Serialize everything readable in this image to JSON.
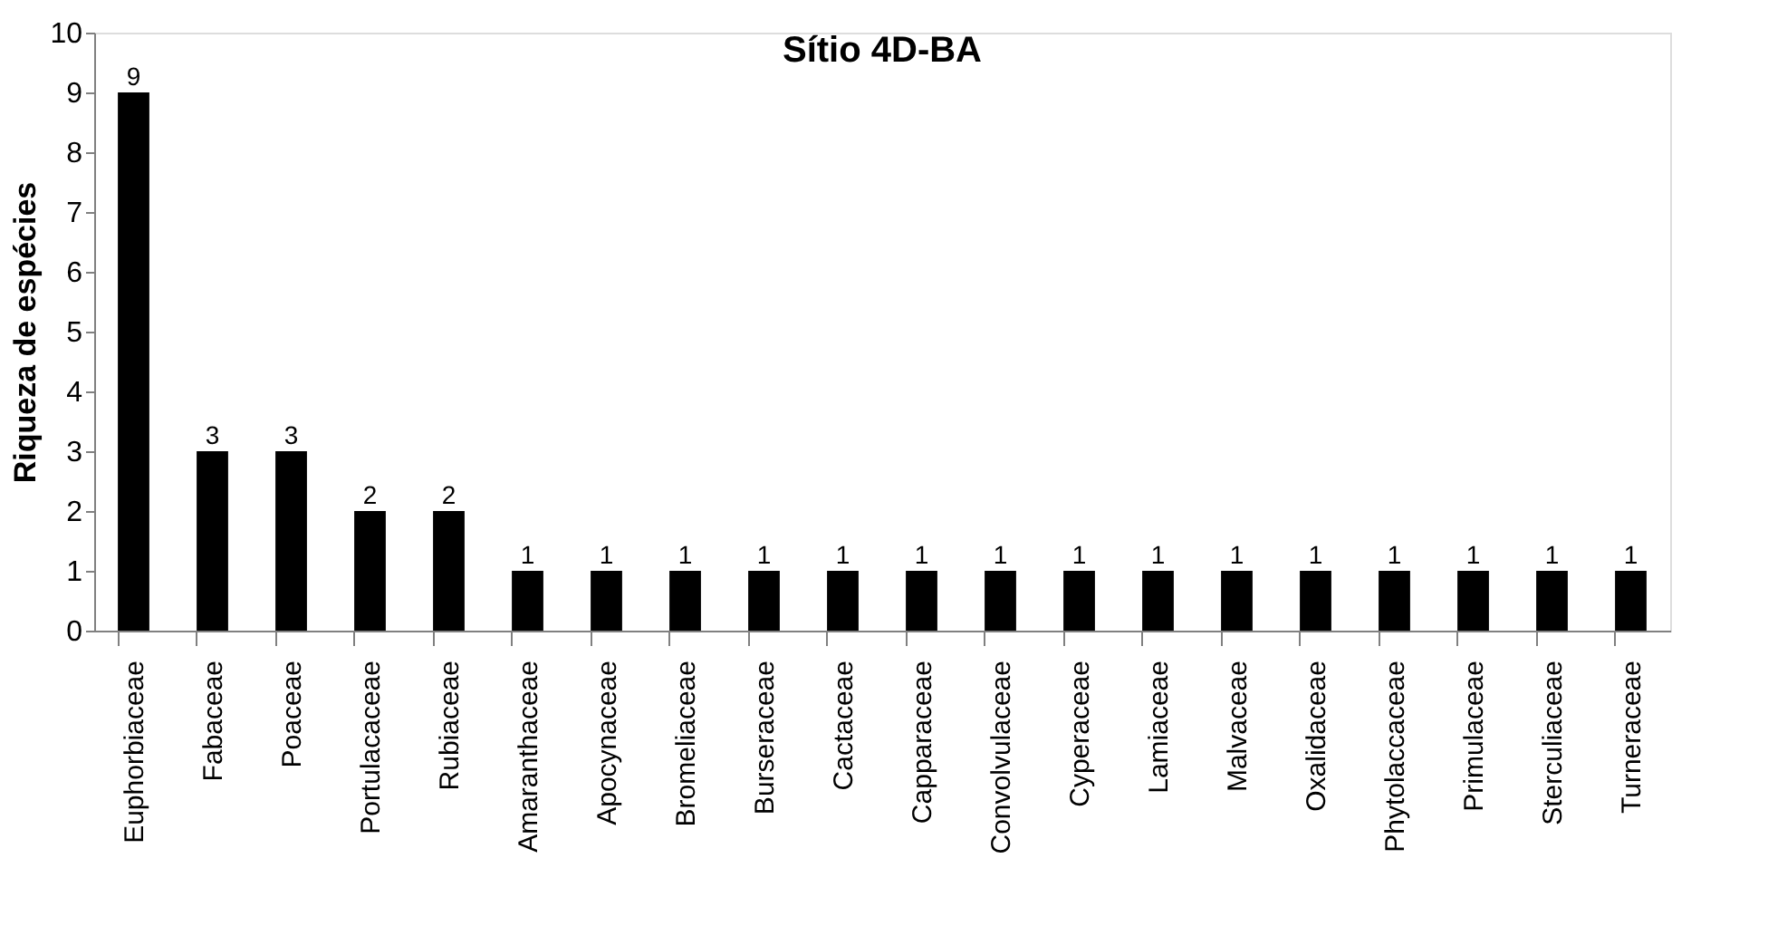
{
  "chart_data": {
    "type": "bar",
    "title": "Sítio 4D-BA",
    "ylabel": "Riqueza de espécies",
    "categories": [
      "Euphorbiaceae",
      "Fabaceae",
      "Poaceae",
      "Portulacaceae",
      "Rubiaceae",
      "Amaranthaceae",
      "Apocynaceae",
      "Bromeliaceae",
      "Burseraceae",
      "Cactaceae",
      "Capparaceae",
      "Convolvulaceae",
      "Cyperaceae",
      "Lamiaceae",
      "Malvaceae",
      "Oxalidaceae",
      "Phytolaccaceae",
      "Primulaceae",
      "Sterculiaceae",
      "Turneraceae"
    ],
    "values": [
      9,
      3,
      3,
      2,
      2,
      1,
      1,
      1,
      1,
      1,
      1,
      1,
      1,
      1,
      1,
      1,
      1,
      1,
      1,
      1
    ],
    "color": "#000000",
    "ylim": [
      0,
      10
    ],
    "yticks": [
      0,
      1,
      2,
      3,
      4,
      5,
      6,
      7,
      8,
      9,
      10
    ],
    "grid": false,
    "data_labels": true
  }
}
